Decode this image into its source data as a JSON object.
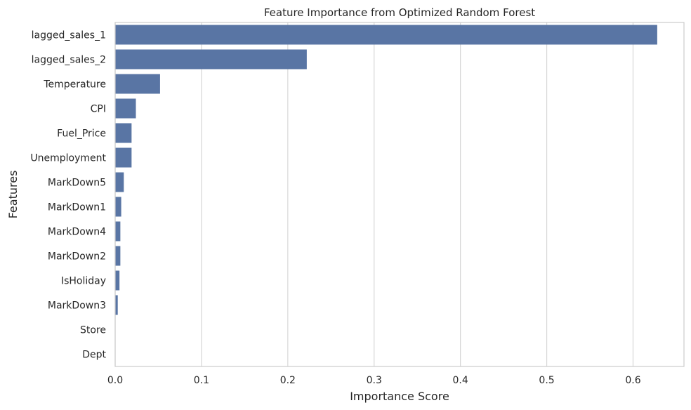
{
  "chart_data": {
    "type": "bar",
    "orientation": "horizontal",
    "title": "Feature Importance from Optimized Random Forest",
    "xlabel": "Importance Score",
    "ylabel": "Features",
    "categories": [
      "lagged_sales_1",
      "lagged_sales_2",
      "Temperature",
      "CPI",
      "Fuel_Price",
      "Unemployment",
      "MarkDown5",
      "MarkDown1",
      "MarkDown4",
      "MarkDown2",
      "IsHoliday",
      "MarkDown3",
      "Store",
      "Dept"
    ],
    "values": [
      0.628,
      0.222,
      0.052,
      0.024,
      0.019,
      0.019,
      0.01,
      0.007,
      0.006,
      0.006,
      0.005,
      0.003,
      0.0,
      0.0
    ],
    "xlim": [
      0,
      0.659
    ],
    "xticks": [
      0.0,
      0.1,
      0.2,
      0.3,
      0.4,
      0.5,
      0.6
    ],
    "xtick_labels": [
      "0.0",
      "0.1",
      "0.2",
      "0.3",
      "0.4",
      "0.5",
      "0.6"
    ],
    "grid": "vertical",
    "bar_color": "#5975a4"
  }
}
